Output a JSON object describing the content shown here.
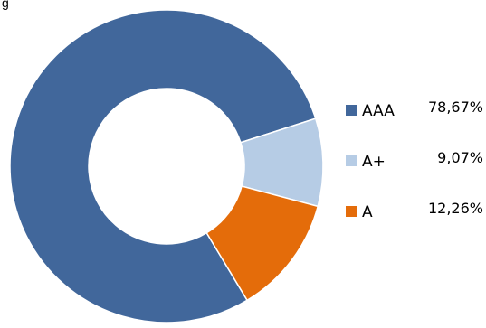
{
  "header": {
    "corner_text": "g"
  },
  "chart_data": {
    "type": "pie",
    "donut": true,
    "categories": [
      "AAA",
      "A+",
      "A"
    ],
    "values": [
      78.67,
      9.07,
      12.26
    ],
    "value_labels": [
      "78,67%",
      "9,07%",
      "12,26%"
    ],
    "colors": [
      "#41679B",
      "#B6CCE5",
      "#E46C0A"
    ],
    "legend_position": "right",
    "start_angle_deg": 149,
    "direction": "clockwise"
  }
}
